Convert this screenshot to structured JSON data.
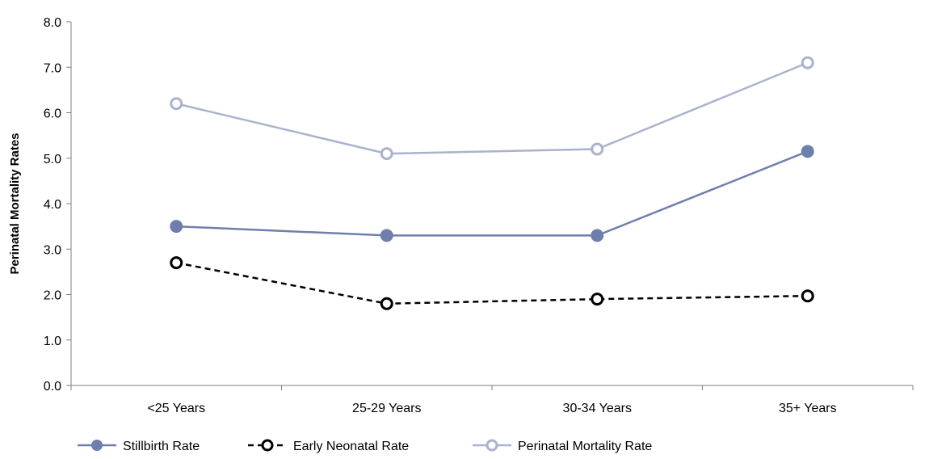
{
  "chart_data": {
    "type": "line",
    "title": "",
    "xlabel": "",
    "ylabel": "Perinatal Mortality Rates",
    "categories": [
      "<25 Years",
      "25-29 Years",
      "30-34 Years",
      "35+ Years"
    ],
    "ylim": [
      0,
      8
    ],
    "yticks": [
      "0.0",
      "1.0",
      "2.0",
      "3.0",
      "4.0",
      "5.0",
      "6.0",
      "7.0",
      "8.0"
    ],
    "grid": false,
    "legend_position": "bottom-left",
    "series": [
      {
        "name": "Stillbirth Rate",
        "values": [
          3.5,
          3.3,
          3.3,
          5.15
        ],
        "color": "#6f7fad",
        "dash": "solid",
        "marker": "filled-circle"
      },
      {
        "name": "Early Neonatal Rate",
        "values": [
          2.7,
          1.8,
          1.9,
          1.97
        ],
        "color": "#000000",
        "dash": "dashed",
        "marker": "open-circle"
      },
      {
        "name": "Perinatal Mortality Rate",
        "values": [
          6.2,
          5.1,
          5.2,
          7.1
        ],
        "color": "#a9b3cc",
        "dash": "solid",
        "marker": "open-circle"
      }
    ]
  }
}
